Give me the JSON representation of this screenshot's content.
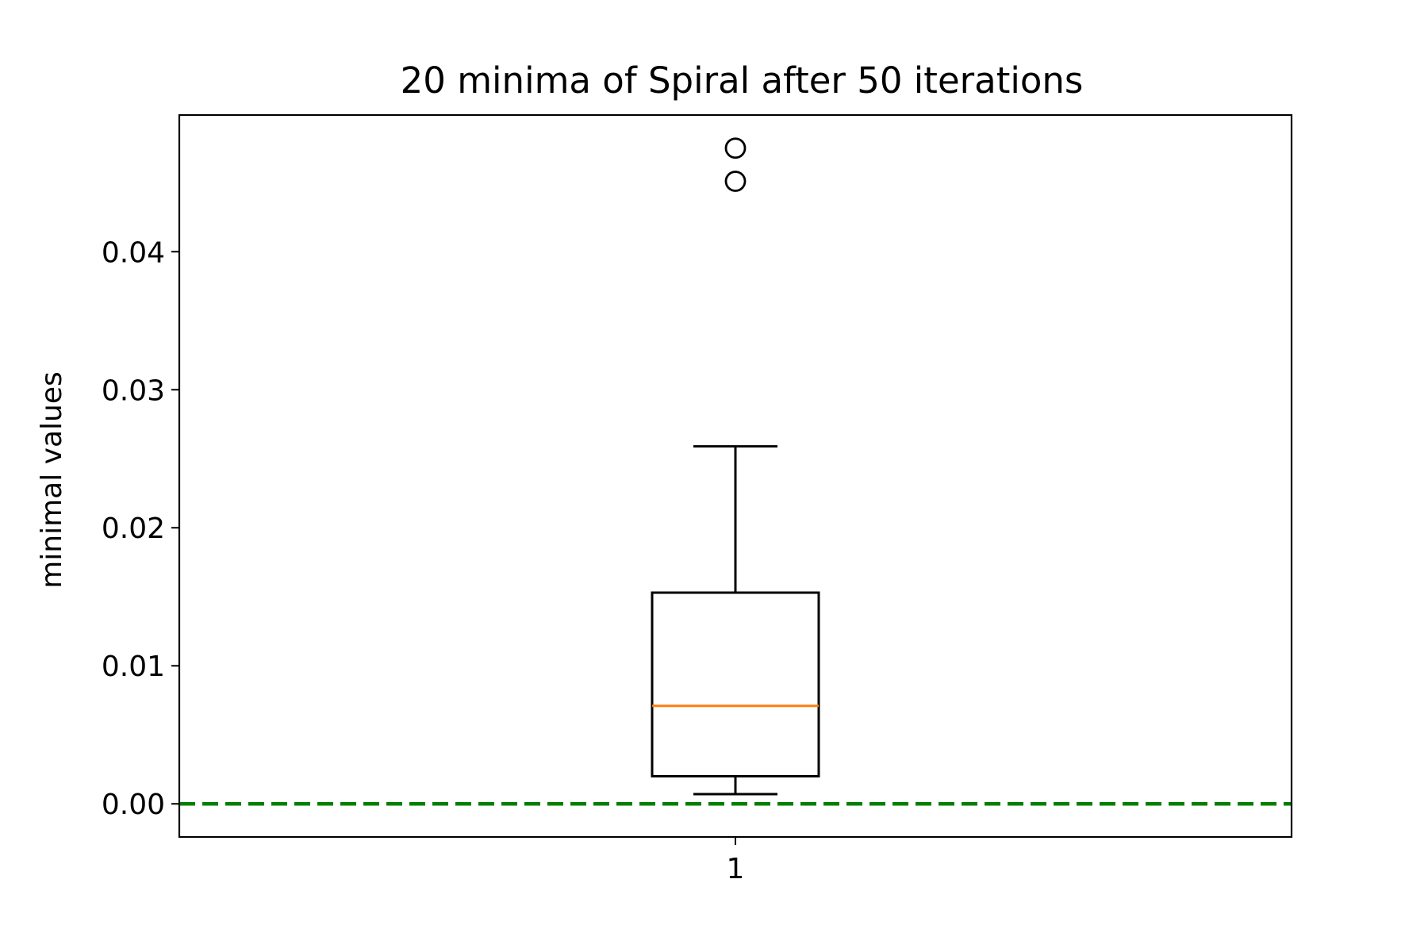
{
  "chart_data": {
    "type": "box",
    "title": "20 minima of Spiral after 50 iterations",
    "xlabel": "",
    "ylabel": "minimal values",
    "x_tick_labels": [
      "1"
    ],
    "y_ticks": [
      0.0,
      0.01,
      0.02,
      0.03,
      0.04
    ],
    "y_tick_labels": [
      "0.00",
      "0.01",
      "0.02",
      "0.03",
      "0.04"
    ],
    "ylim": [
      -0.0024,
      0.0499
    ],
    "grid": false,
    "legend": "none",
    "series": [
      {
        "category": "1",
        "whisker_low": 0.0007,
        "q1": 0.002,
        "median": 0.0071,
        "q3": 0.0153,
        "whisker_high": 0.0259,
        "outliers": [
          0.0451,
          0.0475
        ]
      }
    ],
    "reference_line": {
      "y": 0.0,
      "style": "dashed"
    },
    "colors": {
      "box": "#000000",
      "median": "#ff7f0e",
      "reference_line": "#007f00",
      "outlier": "#000000"
    }
  }
}
